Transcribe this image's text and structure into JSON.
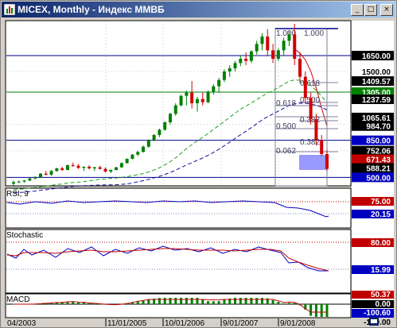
{
  "window": {
    "title": "MICEX, Monthly - Индекс ММВБ",
    "minimize_glyph": "_",
    "maximize_glyph": "□",
    "close_glyph": "×"
  },
  "chart_data": {
    "type": "candlestick",
    "title": "MICEX, Monthly - Индекс ММВБ",
    "date_labels": [
      "04/2003",
      "11/01/2005",
      "10/01/2006",
      "9/01/2007",
      "9/01/2008"
    ],
    "fib_tool": {
      "top_label": "1.000",
      "top_label_right": "1.000",
      "levels": [
        "0.618",
        "0.500",
        "0.382",
        "0.500",
        "0.618",
        "0.382",
        "0.062"
      ]
    },
    "price_axis": {
      "labels": [
        {
          "text": "1650.00",
          "value": 1650.0,
          "style": "box"
        },
        {
          "text": "1500.00",
          "value": 1500.0,
          "style": "plain"
        },
        {
          "text": "1409.57",
          "value": 1409.57,
          "style": "box"
        },
        {
          "text": "1305.00",
          "value": 1305.0,
          "style": "box-green"
        },
        {
          "text": "1237.59",
          "value": 1237.59,
          "style": "box"
        },
        {
          "text": "1065.61",
          "value": 1065.61,
          "style": "box"
        },
        {
          "text": "984.70",
          "value": 984.7,
          "style": "box"
        },
        {
          "text": "850.00",
          "value": 850.0,
          "style": "box-blue"
        },
        {
          "text": "752.06",
          "value": 752.06,
          "style": "box"
        },
        {
          "text": "671.43",
          "value": 671.43,
          "style": "box-red"
        },
        {
          "text": "588.21",
          "value": 588.21,
          "style": "box"
        },
        {
          "text": "500.00",
          "value": 500.0,
          "style": "box-blue"
        }
      ],
      "horizontal_lines": [
        {
          "value": 1650,
          "color": "#00008b"
        },
        {
          "value": 1305,
          "color": "#008000"
        },
        {
          "value": 850,
          "color": "#00008b"
        },
        {
          "value": 500,
          "color": "#00008b"
        }
      ]
    },
    "candles": [
      {
        "o": 440,
        "h": 470,
        "l": 420,
        "c": 455
      },
      {
        "o": 455,
        "h": 470,
        "l": 445,
        "c": 460
      },
      {
        "o": 460,
        "h": 475,
        "l": 450,
        "c": 470
      },
      {
        "o": 470,
        "h": 495,
        "l": 465,
        "c": 490
      },
      {
        "o": 490,
        "h": 510,
        "l": 480,
        "c": 500
      },
      {
        "o": 500,
        "h": 540,
        "l": 495,
        "c": 535
      },
      {
        "o": 535,
        "h": 560,
        "l": 520,
        "c": 525
      },
      {
        "o": 525,
        "h": 570,
        "l": 515,
        "c": 560
      },
      {
        "o": 560,
        "h": 590,
        "l": 555,
        "c": 585
      },
      {
        "o": 585,
        "h": 600,
        "l": 560,
        "c": 570
      },
      {
        "o": 570,
        "h": 620,
        "l": 565,
        "c": 615
      },
      {
        "o": 615,
        "h": 640,
        "l": 600,
        "c": 610
      },
      {
        "o": 610,
        "h": 625,
        "l": 580,
        "c": 590
      },
      {
        "o": 590,
        "h": 605,
        "l": 560,
        "c": 600
      },
      {
        "o": 600,
        "h": 615,
        "l": 575,
        "c": 585
      },
      {
        "o": 585,
        "h": 600,
        "l": 560,
        "c": 595
      },
      {
        "o": 595,
        "h": 610,
        "l": 575,
        "c": 580
      },
      {
        "o": 580,
        "h": 595,
        "l": 545,
        "c": 555
      },
      {
        "o": 555,
        "h": 575,
        "l": 540,
        "c": 570
      },
      {
        "o": 570,
        "h": 600,
        "l": 565,
        "c": 595
      },
      {
        "o": 595,
        "h": 640,
        "l": 590,
        "c": 635
      },
      {
        "o": 635,
        "h": 680,
        "l": 630,
        "c": 675
      },
      {
        "o": 675,
        "h": 720,
        "l": 670,
        "c": 715
      },
      {
        "o": 715,
        "h": 750,
        "l": 700,
        "c": 740
      },
      {
        "o": 740,
        "h": 800,
        "l": 735,
        "c": 790
      },
      {
        "o": 790,
        "h": 860,
        "l": 780,
        "c": 850
      },
      {
        "o": 850,
        "h": 910,
        "l": 840,
        "c": 900
      },
      {
        "o": 900,
        "h": 960,
        "l": 880,
        "c": 950
      },
      {
        "o": 950,
        "h": 1030,
        "l": 940,
        "c": 1020
      },
      {
        "o": 1020,
        "h": 1110,
        "l": 1000,
        "c": 1100
      },
      {
        "o": 1100,
        "h": 1200,
        "l": 1080,
        "c": 1180
      },
      {
        "o": 1180,
        "h": 1280,
        "l": 1170,
        "c": 1270
      },
      {
        "o": 1270,
        "h": 1320,
        "l": 1180,
        "c": 1300
      },
      {
        "o": 1300,
        "h": 1410,
        "l": 1150,
        "c": 1200
      },
      {
        "o": 1200,
        "h": 1260,
        "l": 1120,
        "c": 1240
      },
      {
        "o": 1240,
        "h": 1300,
        "l": 1180,
        "c": 1210
      },
      {
        "o": 1210,
        "h": 1320,
        "l": 1200,
        "c": 1310
      },
      {
        "o": 1310,
        "h": 1380,
        "l": 1280,
        "c": 1360
      },
      {
        "o": 1360,
        "h": 1440,
        "l": 1300,
        "c": 1420
      },
      {
        "o": 1420,
        "h": 1520,
        "l": 1400,
        "c": 1500
      },
      {
        "o": 1500,
        "h": 1560,
        "l": 1450,
        "c": 1530
      },
      {
        "o": 1530,
        "h": 1600,
        "l": 1500,
        "c": 1580
      },
      {
        "o": 1580,
        "h": 1650,
        "l": 1550,
        "c": 1620
      },
      {
        "o": 1620,
        "h": 1680,
        "l": 1560,
        "c": 1600
      },
      {
        "o": 1600,
        "h": 1700,
        "l": 1580,
        "c": 1690
      },
      {
        "o": 1690,
        "h": 1790,
        "l": 1660,
        "c": 1760
      },
      {
        "o": 1760,
        "h": 1860,
        "l": 1700,
        "c": 1830
      },
      {
        "o": 1830,
        "h": 1900,
        "l": 1650,
        "c": 1700
      },
      {
        "o": 1700,
        "h": 1760,
        "l": 1580,
        "c": 1620
      },
      {
        "o": 1620,
        "h": 1720,
        "l": 1600,
        "c": 1700
      },
      {
        "o": 1700,
        "h": 1820,
        "l": 1650,
        "c": 1790
      },
      {
        "o": 1790,
        "h": 1880,
        "l": 1740,
        "c": 1850
      },
      {
        "o": 1850,
        "h": 1950,
        "l": 1560,
        "c": 1620
      },
      {
        "o": 1620,
        "h": 1680,
        "l": 1400,
        "c": 1450
      },
      {
        "o": 1450,
        "h": 1500,
        "l": 1200,
        "c": 1250
      },
      {
        "o": 1250,
        "h": 1300,
        "l": 1000,
        "c": 1050
      },
      {
        "o": 1050,
        "h": 1100,
        "l": 800,
        "c": 850
      },
      {
        "o": 850,
        "h": 900,
        "l": 700,
        "c": 720
      },
      {
        "o": 720,
        "h": 760,
        "l": 560,
        "c": 580
      }
    ],
    "indicators": {
      "rsi": {
        "name": "RSI, 9",
        "labels": [
          "75.00",
          "20.15"
        ]
      },
      "stochastic": {
        "name": "Stochastic",
        "labels": [
          "80.00",
          "15.99"
        ]
      },
      "macd": {
        "name": "MACD",
        "labels": [
          "50.37",
          "0.00",
          "-100.60",
          "-150.00"
        ]
      }
    }
  }
}
